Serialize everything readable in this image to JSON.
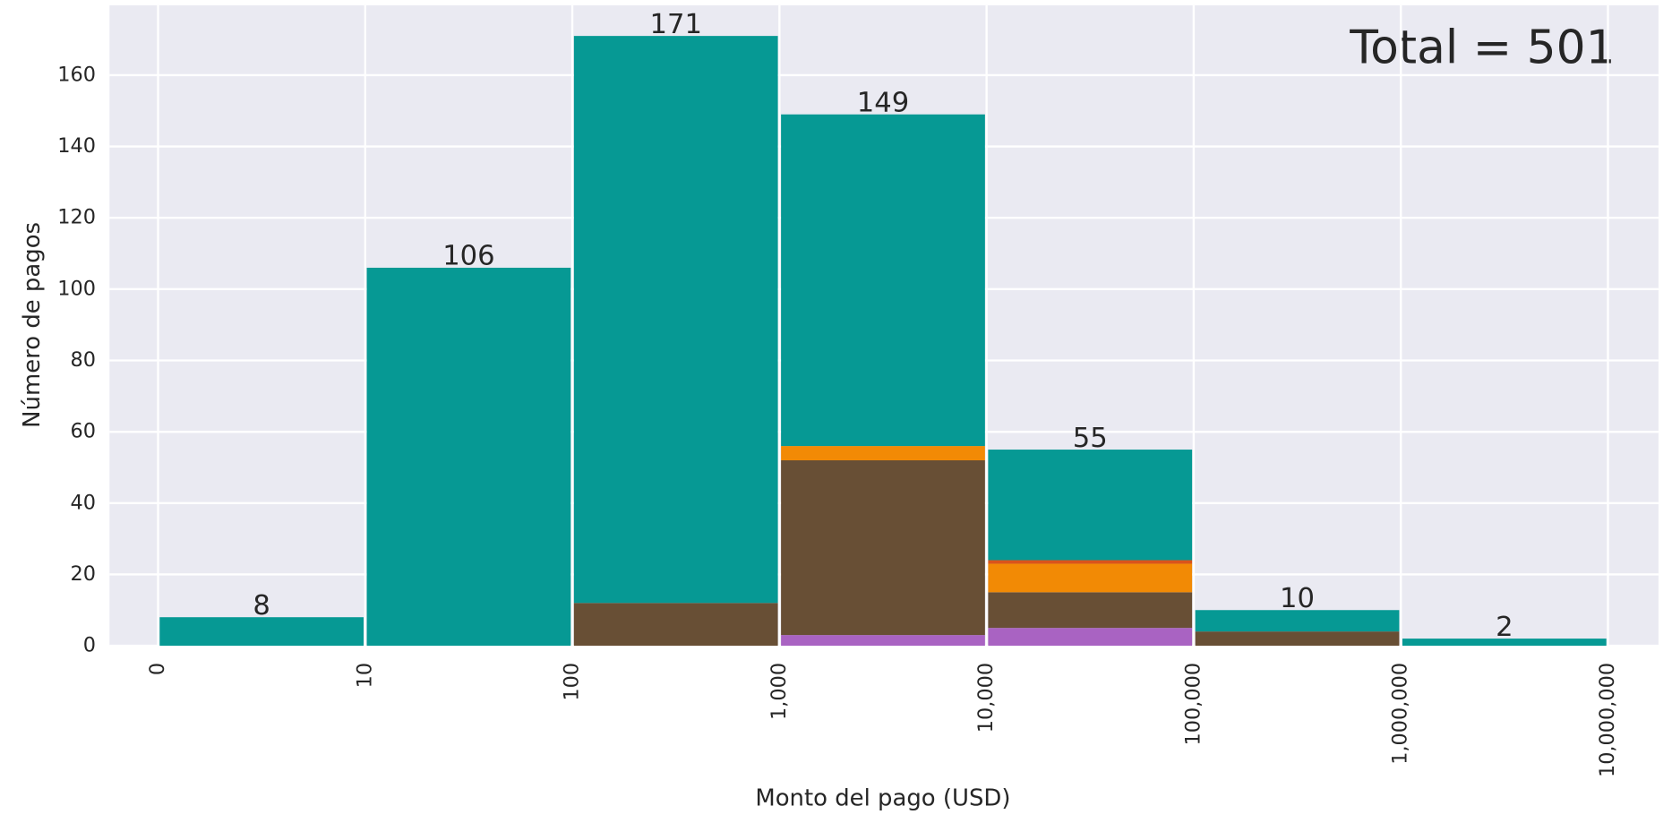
{
  "chart_data": {
    "type": "histogram",
    "xlabel": "Monto del pago (USD)",
    "ylabel": "Número de pagos",
    "annotation": "Total = 501",
    "bins": [
      0,
      10,
      100,
      {
        "value": 1000,
        "label": "1,000"
      },
      {
        "value": 10000,
        "label": "10,000"
      },
      {
        "value": 100000,
        "label": "100,000"
      },
      {
        "value": 1000000,
        "label": "1,000,000"
      },
      {
        "value": 10000000,
        "label": "10,000,000"
      }
    ],
    "series": [
      {
        "color": "#a963c2",
        "values": [
          0,
          0,
          0,
          3,
          5,
          0,
          0
        ]
      },
      {
        "color": "#684f35",
        "values": [
          0,
          0,
          12,
          49,
          10,
          4,
          0
        ]
      },
      {
        "color": "#f28a05",
        "values": [
          0,
          0,
          0,
          4,
          8,
          0,
          0
        ]
      },
      {
        "color": "#d9541b",
        "values": [
          0,
          0,
          0,
          0,
          1,
          0,
          0
        ]
      },
      {
        "color": "#069994",
        "values": [
          8,
          106,
          159,
          93,
          31,
          6,
          2
        ]
      }
    ],
    "value_labels": [
      "8",
      "106",
      "171",
      "149",
      "55",
      "10",
      "2"
    ],
    "ylim": [
      0,
      179.6
    ],
    "yticks": [
      0,
      20,
      40,
      60,
      80,
      100,
      120,
      140,
      160
    ],
    "grid": true,
    "background": "#eaeaf2"
  }
}
